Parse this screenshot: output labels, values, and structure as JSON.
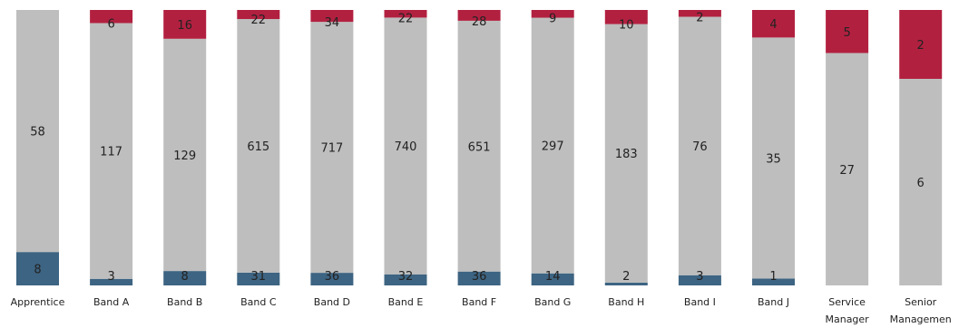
{
  "chart_data": {
    "type": "bar",
    "stacked": true,
    "normalized": true,
    "categories": [
      "Apprentice",
      "Band A",
      "Band B",
      "Band C",
      "Band D",
      "Band E",
      "Band F",
      "Band G",
      "Band H",
      "Band I",
      "Band J",
      "Service Manager",
      "Senior Management"
    ],
    "category_lines": [
      [
        "Apprentice"
      ],
      [
        "Band A"
      ],
      [
        "Band B"
      ],
      [
        "Band C"
      ],
      [
        "Band D"
      ],
      [
        "Band E"
      ],
      [
        "Band F"
      ],
      [
        "Band G"
      ],
      [
        "Band H"
      ],
      [
        "Band I"
      ],
      [
        "Band J"
      ],
      [
        "Service",
        "Manager"
      ],
      [
        "Senior",
        "Managemen"
      ]
    ],
    "series": [
      {
        "color": "#3d6482",
        "values": [
          8,
          3,
          8,
          31,
          36,
          32,
          36,
          14,
          2,
          3,
          1,
          0,
          0
        ]
      },
      {
        "color": "#bebebe",
        "values": [
          58,
          117,
          129,
          615,
          717,
          740,
          651,
          297,
          183,
          76,
          35,
          27,
          6
        ]
      },
      {
        "color": "#b22040",
        "values": [
          0,
          6,
          16,
          22,
          34,
          22,
          28,
          9,
          10,
          2,
          4,
          5,
          2
        ]
      }
    ],
    "xlabel": "",
    "ylabel": "",
    "grid": false,
    "legend": "none"
  }
}
